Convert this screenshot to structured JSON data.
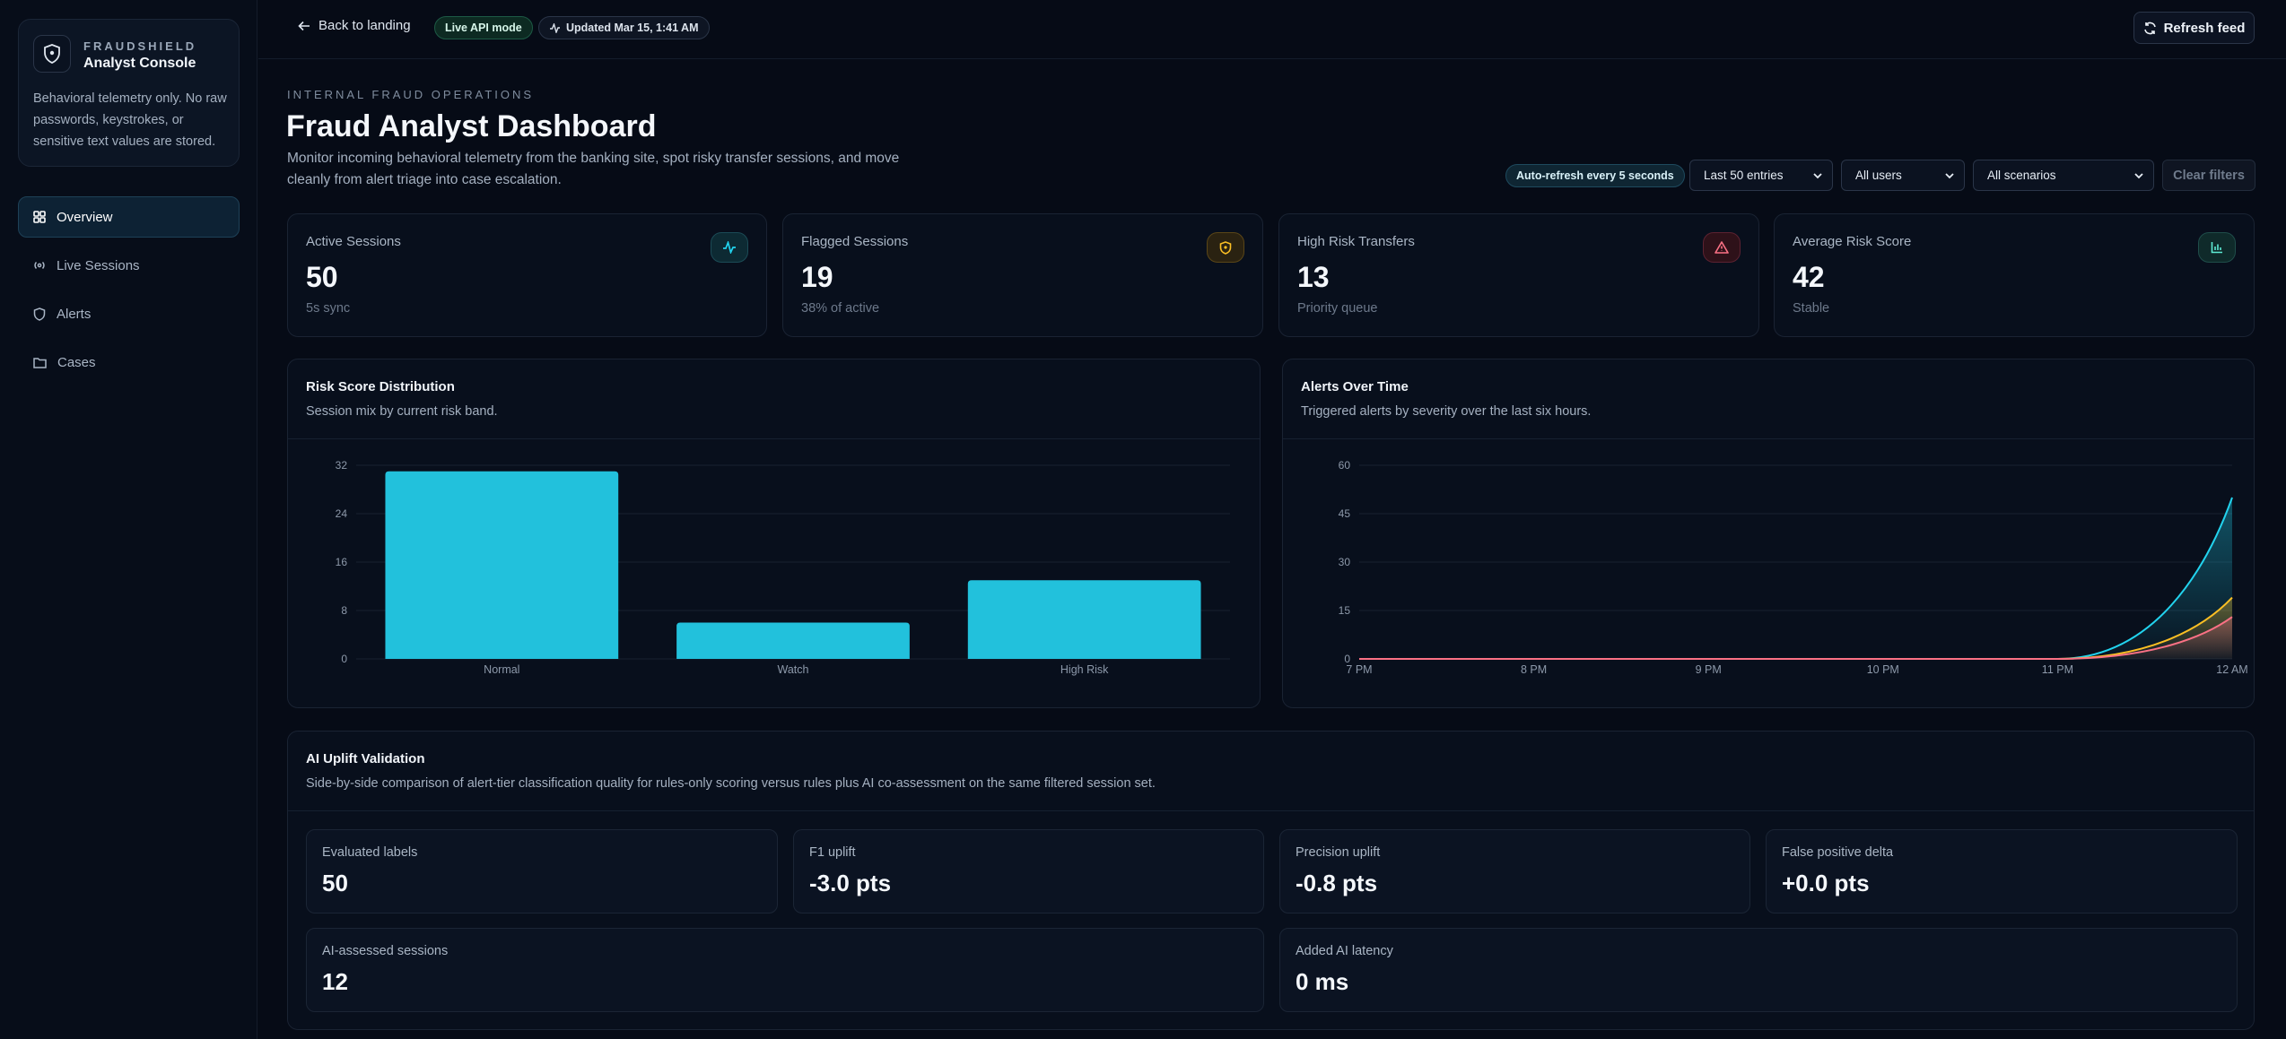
{
  "brand": {
    "kicker": "FRAUDSHIELD",
    "name": "Analyst Console",
    "note": "Behavioral telemetry only. No raw passwords, keystrokes, or sensitive text values are stored.",
    "logo_icon": "shield-icon"
  },
  "nav": {
    "items": [
      {
        "label": "Overview",
        "icon": "grid-icon",
        "active": true
      },
      {
        "label": "Live Sessions",
        "icon": "radio-icon",
        "active": false
      },
      {
        "label": "Alerts",
        "icon": "shield-icon",
        "active": false
      },
      {
        "label": "Cases",
        "icon": "folder-icon",
        "active": false
      }
    ]
  },
  "topbar": {
    "back_label": "Back to landing",
    "live_label": "Live API mode",
    "updated_label": "Updated Mar 15, 1:41 AM",
    "refresh_label": "Refresh feed"
  },
  "header": {
    "eyebrow": "INTERNAL FRAUD OPERATIONS",
    "title": "Fraud Analyst Dashboard",
    "description": "Monitor incoming behavioral telemetry from the banking site, spot risky transfer sessions, and move cleanly from alert triage into case escalation."
  },
  "filters": {
    "auto_refresh": "Auto-refresh every 5 seconds",
    "entries": "Last 50 entries",
    "users": "All users",
    "scenarios": "All scenarios",
    "clear": "Clear filters"
  },
  "stats": [
    {
      "label": "Active Sessions",
      "value": "50",
      "sub": "5s sync",
      "icon": "activity-icon",
      "color": "#22d3ee"
    },
    {
      "label": "Flagged Sessions",
      "value": "19",
      "sub": "38% of active",
      "icon": "shield-icon",
      "color": "#fbbf24"
    },
    {
      "label": "High Risk Transfers",
      "value": "13",
      "sub": "Priority queue",
      "icon": "warning-icon",
      "color": "#fb7185"
    },
    {
      "label": "Average Risk Score",
      "value": "42",
      "sub": "Stable",
      "icon": "bar-chart-icon",
      "color": "#5eead4"
    }
  ],
  "risk_panel": {
    "title": "Risk Score Distribution",
    "subtitle": "Session mix by current risk band."
  },
  "alerts_panel": {
    "title": "Alerts Over Time",
    "subtitle": "Triggered alerts by severity over the last six hours."
  },
  "chart_data": [
    {
      "type": "bar",
      "categories": [
        "Normal",
        "Watch",
        "High Risk"
      ],
      "values": [
        31,
        6,
        13
      ],
      "ylim": [
        0,
        32
      ],
      "yticks": [
        "0",
        "8",
        "16",
        "24",
        "32"
      ],
      "grid": true,
      "color": "#22c1dc"
    },
    {
      "type": "area",
      "x": [
        "7 PM",
        "8 PM",
        "9 PM",
        "10 PM",
        "11 PM",
        "12 AM"
      ],
      "ylim": [
        0,
        60
      ],
      "yticks": [
        "0",
        "15",
        "30",
        "45",
        "60"
      ],
      "grid": true,
      "series": [
        {
          "values": [
            0,
            0,
            0,
            0,
            0,
            50
          ],
          "color": "#22d3ee"
        },
        {
          "values": [
            0,
            0,
            0,
            0,
            0,
            19
          ],
          "color": "#fbbf24"
        },
        {
          "values": [
            0,
            0,
            0,
            0,
            0,
            13
          ],
          "color": "#fb7185"
        }
      ]
    }
  ],
  "ai": {
    "title": "AI Uplift Validation",
    "subtitle": "Side-by-side comparison of alert-tier classification quality for rules-only scoring versus rules plus AI co-assessment on the same filtered session set.",
    "metrics": [
      {
        "label": "Evaluated labels",
        "value": "50"
      },
      {
        "label": "F1 uplift",
        "value": "-3.0 pts"
      },
      {
        "label": "Precision uplift",
        "value": "-0.8 pts"
      },
      {
        "label": "False positive delta",
        "value": "+0.0 pts"
      },
      {
        "label": "AI-assessed sessions",
        "value": "12"
      },
      {
        "label": "Added AI latency",
        "value": "0 ms"
      }
    ]
  }
}
